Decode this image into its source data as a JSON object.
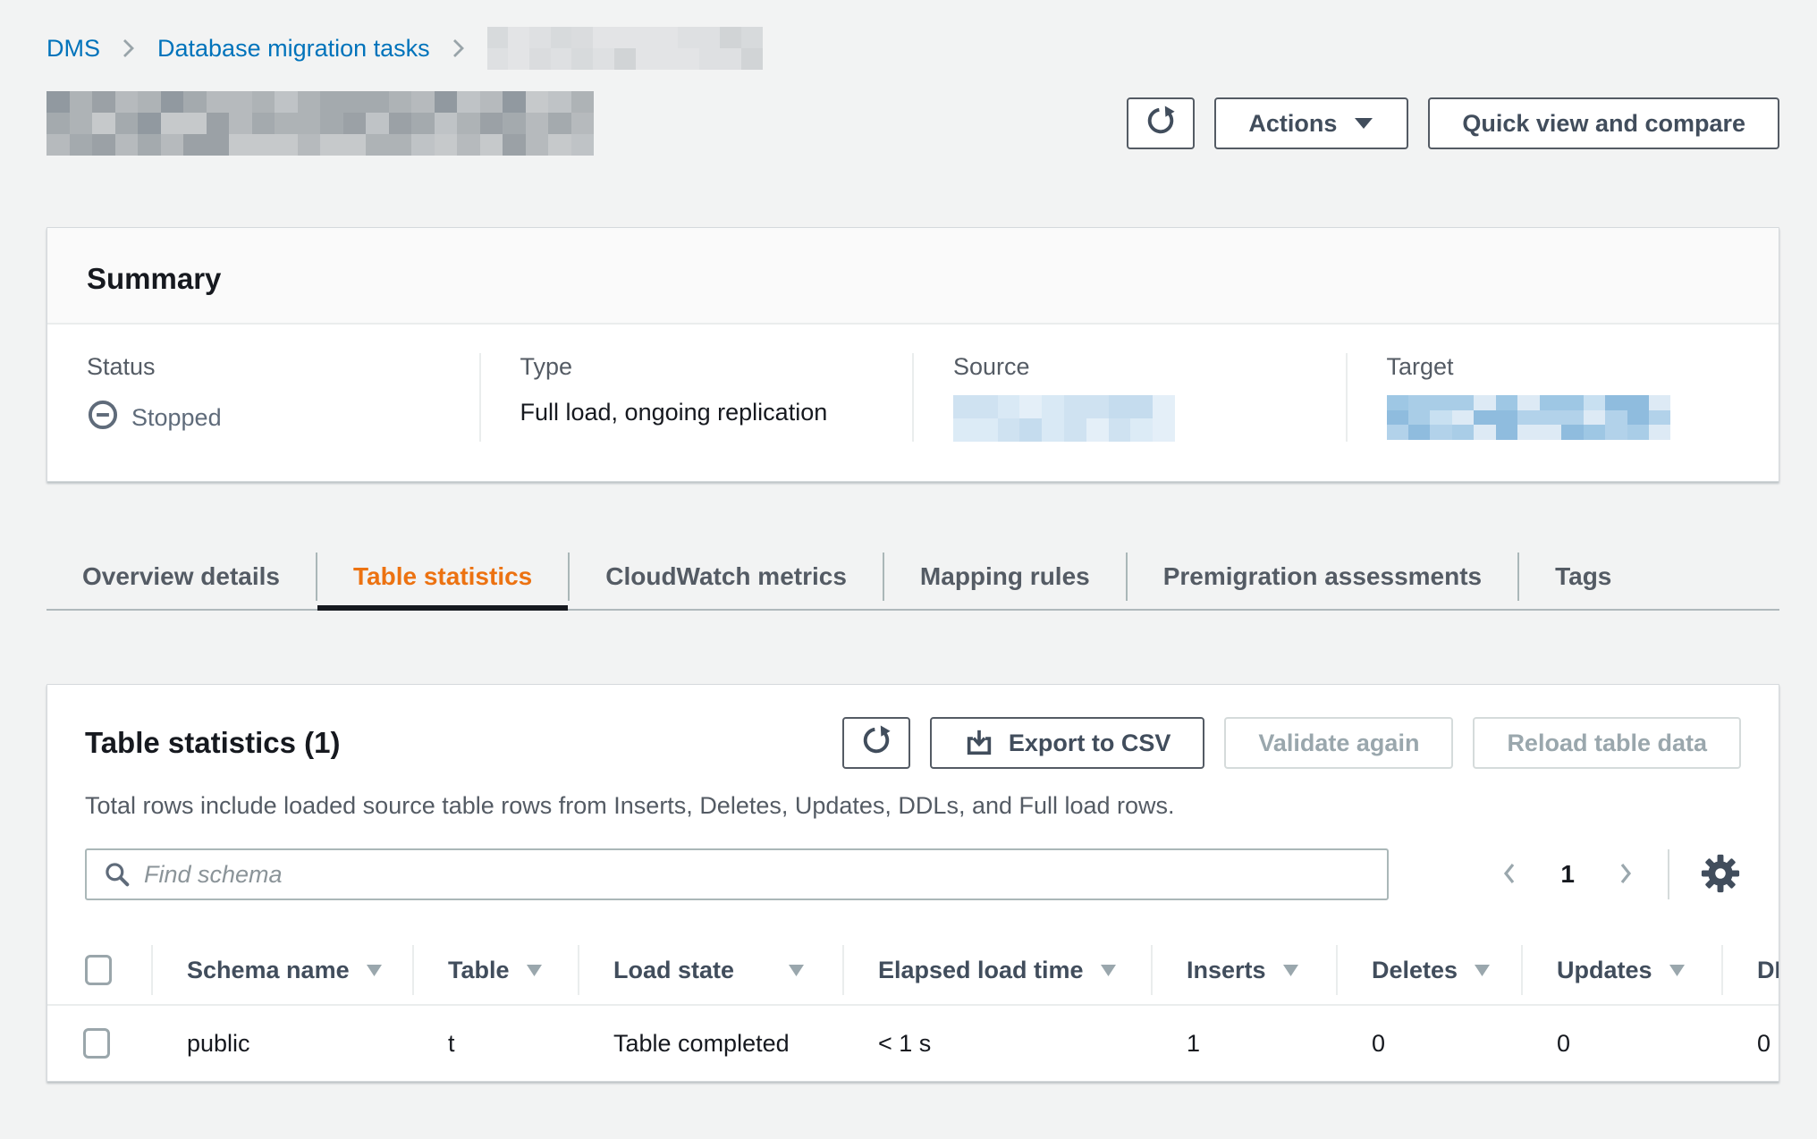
{
  "colors": {
    "link-blue": "#0073bb",
    "accent-orange": "#ec7211",
    "text-dark": "#16191f",
    "text-gray": "#545b64",
    "disabled-text": "#9aa7ad",
    "status-gray": "#5f6b7a"
  },
  "breadcrumb": {
    "items": [
      {
        "label": "DMS"
      },
      {
        "label": "Database migration tasks"
      }
    ],
    "last_item_redacted": true
  },
  "header": {
    "title_redacted": true,
    "refresh_icon": "refresh-icon",
    "actions_label": "Actions",
    "quick_view_label": "Quick view and compare"
  },
  "summary": {
    "title": "Summary",
    "status_label": "Status",
    "status_value": "Stopped",
    "status_icon": "stopped-minus-circle-icon",
    "type_label": "Type",
    "type_value": "Full load, ongoing replication",
    "source_label": "Source",
    "source_value_redacted": true,
    "target_label": "Target",
    "target_value_redacted": true
  },
  "tabs": [
    {
      "label": "Overview details",
      "active": false
    },
    {
      "label": "Table statistics",
      "active": true
    },
    {
      "label": "CloudWatch metrics",
      "active": false
    },
    {
      "label": "Mapping rules",
      "active": false
    },
    {
      "label": "Premigration assessments",
      "active": false
    },
    {
      "label": "Tags",
      "active": false
    }
  ],
  "table_panel": {
    "title": "Table statistics (1)",
    "count": "1",
    "description": "Total rows include loaded source table rows from Inserts, Deletes, Updates, DDLs, and Full load rows.",
    "refresh_icon": "refresh-icon",
    "export_button": "Export to CSV",
    "export_icon": "download-icon",
    "validate_button": "Validate again",
    "validate_disabled": true,
    "reload_button": "Reload table data",
    "reload_disabled": true,
    "search_placeholder": "Find schema",
    "pagination": {
      "page": "1"
    },
    "settings_icon": "gear-icon",
    "columns": [
      "Schema name",
      "Table",
      "Load state",
      "Elapsed load time",
      "Inserts",
      "Deletes",
      "Updates",
      "DDLs"
    ],
    "rows": [
      {
        "schema_name": "public",
        "table": "t",
        "load_state": "Table completed",
        "elapsed_load_time": "< 1 s",
        "inserts": "1",
        "deletes": "0",
        "updates": "0",
        "ddls": "0"
      }
    ]
  }
}
